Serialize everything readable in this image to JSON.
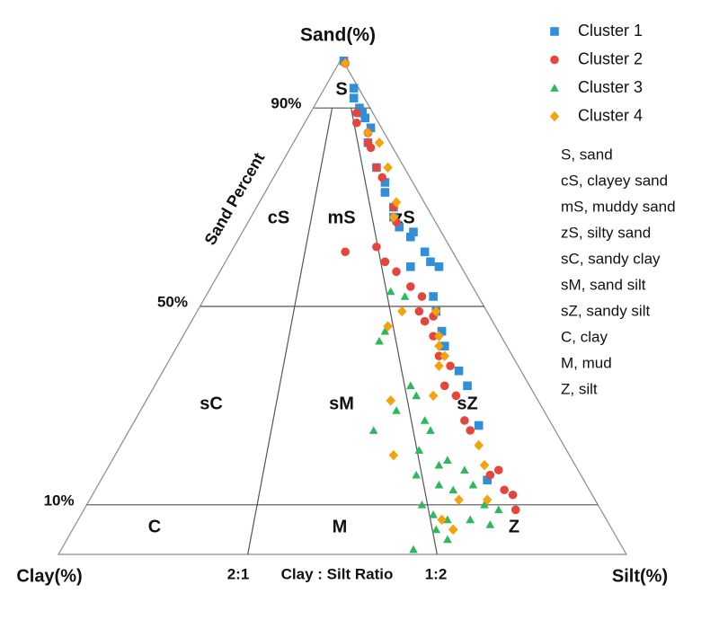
{
  "chart_data": {
    "type": "ternary",
    "title": "Sand(%)",
    "left_label": "Clay(%)",
    "right_label": "Silt(%)",
    "axis_label": "Sand Percent",
    "ratio_labels": [
      "2:1",
      "1:2"
    ],
    "ratio_title": "Clay : Silt Ratio",
    "sand_ticks": [
      {
        "value": 90,
        "label": "90%"
      },
      {
        "value": 50,
        "label": "50%"
      },
      {
        "value": 10,
        "label": "10%"
      }
    ],
    "regions": [
      "S",
      "cS",
      "mS",
      "zS",
      "sC",
      "sM",
      "sZ",
      "C",
      "M",
      "Z"
    ],
    "abbreviations": [
      "S, sand",
      "cS, clayey sand",
      "mS, muddy sand",
      "zS, silty sand",
      "sC, sandy clay",
      "sM, sand silt",
      "sZ, sandy silt",
      "C, clay",
      "M, mud",
      "Z, silt"
    ],
    "series": [
      {
        "name": "Cluster 1",
        "color": "#2f8fd8",
        "marker": "square",
        "sand": [
          99.5,
          94,
          92,
          90,
          89,
          88,
          86,
          83,
          78,
          75,
          73,
          70,
          68,
          66,
          64,
          65,
          61,
          58,
          59,
          58,
          52,
          49,
          45,
          42,
          37,
          34,
          26,
          15
        ],
        "silt": [
          0.5,
          5,
          6,
          8,
          9,
          10,
          12,
          13,
          17,
          20,
          21,
          24,
          25,
          27,
          30,
          30,
          34,
          33,
          36,
          38,
          40,
          42,
          45,
          47,
          52,
          55,
          61,
          68
        ]
      },
      {
        "name": "Cluster 2",
        "color": "#e5463b",
        "marker": "circle",
        "sand": [
          99,
          89,
          87,
          85,
          83,
          82,
          78,
          76,
          70,
          67,
          61,
          62,
          59,
          57,
          54,
          52,
          49,
          47,
          44,
          48,
          40,
          38,
          34,
          32,
          27,
          25,
          16,
          17,
          13,
          12,
          9
        ],
        "silt": [
          1,
          8,
          9,
          12,
          13,
          14,
          17,
          19,
          24,
          26,
          20,
          25,
          28,
          31,
          35,
          38,
          39,
          41,
          44,
          42,
          47,
          50,
          51,
          54,
          58,
          60,
          68,
          69,
          72,
          74,
          76
        ]
      },
      {
        "name": "Cluster 3",
        "color": "#2db85c",
        "marker": "triangle",
        "sand": [
          53,
          52,
          45,
          43,
          34,
          32,
          29,
          27,
          25,
          25,
          21,
          18,
          19,
          17,
          16,
          14,
          13,
          14,
          10,
          9,
          8,
          7,
          7,
          6,
          5,
          3,
          1,
          10
        ],
        "silt": [
          32,
          35,
          35,
          35,
          45,
          47,
          45,
          51,
          53,
          43,
          53,
          58,
          59,
          63,
          55,
          60,
          63,
          66,
          70,
          73,
          62,
          65,
          69,
          73,
          64,
          67,
          62,
          59
        ]
      },
      {
        "name": "Cluster 4",
        "color": "#f5a20f",
        "marker": "diamond",
        "sand": [
          99,
          85,
          83,
          78,
          71,
          68,
          46,
          49,
          49,
          44,
          42,
          40,
          31,
          38,
          32,
          22,
          18,
          11,
          11,
          7,
          5,
          20,
          5
        ],
        "silt": [
          1,
          12,
          15,
          19,
          24,
          25,
          35,
          36,
          42,
          45,
          46,
          48,
          43,
          48,
          50,
          63,
          66,
          70,
          65,
          64,
          67,
          49,
          67
        ]
      }
    ]
  }
}
